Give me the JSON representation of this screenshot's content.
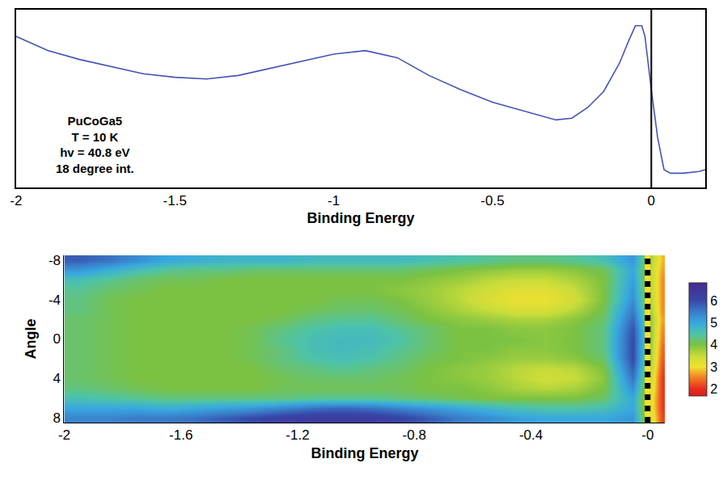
{
  "chart_data": [
    {
      "type": "line",
      "x": [
        -2.0,
        -1.9,
        -1.8,
        -1.7,
        -1.6,
        -1.5,
        -1.4,
        -1.3,
        -1.2,
        -1.1,
        -1.0,
        -0.9,
        -0.8,
        -0.7,
        -0.6,
        -0.5,
        -0.4,
        -0.3,
        -0.25,
        -0.2,
        -0.15,
        -0.1,
        -0.07,
        -0.05,
        -0.03,
        -0.02,
        0.0,
        0.02,
        0.04,
        0.06,
        0.1,
        0.15,
        0.17
      ],
      "values": [
        0.85,
        0.77,
        0.72,
        0.68,
        0.64,
        0.62,
        0.61,
        0.63,
        0.67,
        0.71,
        0.75,
        0.77,
        0.73,
        0.63,
        0.55,
        0.48,
        0.43,
        0.38,
        0.39,
        0.45,
        0.54,
        0.7,
        0.83,
        0.91,
        0.91,
        0.85,
        0.55,
        0.28,
        0.1,
        0.08,
        0.08,
        0.09,
        0.1
      ],
      "color": "#4455b5",
      "xlim": [
        -2,
        0.17
      ],
      "ylim": [
        0,
        1
      ],
      "xticks": [
        -2,
        -1.5,
        -1,
        -0.5,
        0
      ],
      "tick_labels": "x",
      "x_label": "Binding Energy",
      "annotation_lines": [
        "PuCoGa5",
        "T = 10 K",
        "hv = 40.8 eV",
        "18 degree int."
      ],
      "vline": 0
    },
    {
      "type": "heatmap",
      "x": [
        -1.95,
        -1.85,
        -1.75,
        -1.65,
        -1.55,
        -1.45,
        -1.35,
        -1.25,
        -1.15,
        -1.05,
        -0.95,
        -0.85,
        -0.75,
        -0.65,
        -0.55,
        -0.45,
        -0.35,
        -0.25,
        -0.15,
        -0.05,
        0.05
      ],
      "y": [
        -8,
        -7,
        -6,
        -5,
        -4,
        -3,
        -2,
        -1,
        0,
        1,
        2,
        3,
        4,
        5,
        6,
        7,
        8
      ],
      "z": [
        [
          5.8,
          5.6,
          5.3,
          5.0,
          4.9,
          4.8,
          4.8,
          4.8,
          4.7,
          4.7,
          4.7,
          4.7,
          4.6,
          4.5,
          4.4,
          4.3,
          4.3,
          4.4,
          4.6,
          5.2,
          2.8
        ],
        [
          5.2,
          4.9,
          4.6,
          4.4,
          4.3,
          4.3,
          4.2,
          4.2,
          4.2,
          4.2,
          4.2,
          4.2,
          4.1,
          4.0,
          3.9,
          3.8,
          3.8,
          3.9,
          4.1,
          5.0,
          2.7
        ],
        [
          4.6,
          4.4,
          4.2,
          4.1,
          4.1,
          4.0,
          4.0,
          4.0,
          4.0,
          4.0,
          4.0,
          4.0,
          3.9,
          3.8,
          3.6,
          3.5,
          3.5,
          3.7,
          4.0,
          5.1,
          2.6
        ],
        [
          4.4,
          4.2,
          4.1,
          4.0,
          4.0,
          4.0,
          4.0,
          4.0,
          4.0,
          4.0,
          4.0,
          3.9,
          3.8,
          3.6,
          3.4,
          3.2,
          3.2,
          3.5,
          4.0,
          5.2,
          2.6
        ],
        [
          4.3,
          4.1,
          4.0,
          4.0,
          4.0,
          4.0,
          4.0,
          4.0,
          4.0,
          4.1,
          4.1,
          4.0,
          3.8,
          3.6,
          3.3,
          3.1,
          3.1,
          3.4,
          4.0,
          5.3,
          2.6
        ],
        [
          4.3,
          4.1,
          4.0,
          4.0,
          4.0,
          4.0,
          4.0,
          4.0,
          4.1,
          4.2,
          4.2,
          4.1,
          3.9,
          3.7,
          3.5,
          3.3,
          3.3,
          3.6,
          4.1,
          5.5,
          2.6
        ],
        [
          4.2,
          4.1,
          4.0,
          4.0,
          4.0,
          4.0,
          4.0,
          4.1,
          4.3,
          4.4,
          4.4,
          4.2,
          4.0,
          3.9,
          3.8,
          3.7,
          3.7,
          3.9,
          4.2,
          5.7,
          2.7
        ],
        [
          4.2,
          4.1,
          4.0,
          4.0,
          4.0,
          4.0,
          4.1,
          4.3,
          4.5,
          4.6,
          4.6,
          4.4,
          4.2,
          4.0,
          4.0,
          3.9,
          3.9,
          4.0,
          4.3,
          5.9,
          2.6
        ],
        [
          4.2,
          4.1,
          4.0,
          4.0,
          4.0,
          4.0,
          4.1,
          4.4,
          4.6,
          4.7,
          4.7,
          4.5,
          4.2,
          4.0,
          4.0,
          4.0,
          3.9,
          4.0,
          4.3,
          6.0,
          2.5
        ],
        [
          4.2,
          4.1,
          4.0,
          4.0,
          4.0,
          4.0,
          4.1,
          4.3,
          4.6,
          4.7,
          4.6,
          4.4,
          4.2,
          4.0,
          4.0,
          3.9,
          3.9,
          4.0,
          4.3,
          6.0,
          2.4
        ],
        [
          4.2,
          4.1,
          4.0,
          4.0,
          4.0,
          4.0,
          4.1,
          4.3,
          4.5,
          4.6,
          4.5,
          4.3,
          4.1,
          4.0,
          3.9,
          3.8,
          3.8,
          3.9,
          4.2,
          6.0,
          2.3
        ],
        [
          4.2,
          4.1,
          4.0,
          4.0,
          4.0,
          4.0,
          4.0,
          4.2,
          4.3,
          4.4,
          4.3,
          4.2,
          4.0,
          3.9,
          3.8,
          3.6,
          3.5,
          3.6,
          4.0,
          5.8,
          2.2
        ],
        [
          4.2,
          4.1,
          4.0,
          4.0,
          4.0,
          4.0,
          4.0,
          4.1,
          4.2,
          4.2,
          4.2,
          4.1,
          4.0,
          3.9,
          3.8,
          3.6,
          3.4,
          3.5,
          3.9,
          5.6,
          2.1
        ],
        [
          4.3,
          4.2,
          4.1,
          4.0,
          4.0,
          4.0,
          4.0,
          4.1,
          4.1,
          4.1,
          4.1,
          4.1,
          4.0,
          4.0,
          3.9,
          3.7,
          3.6,
          3.7,
          4.0,
          5.3,
          2.1
        ],
        [
          4.6,
          4.5,
          4.4,
          4.3,
          4.3,
          4.3,
          4.3,
          4.3,
          4.4,
          4.4,
          4.4,
          4.3,
          4.2,
          4.1,
          4.0,
          4.0,
          4.0,
          4.0,
          4.2,
          5.0,
          2.1
        ],
        [
          5.0,
          5.0,
          5.0,
          4.9,
          5.0,
          5.1,
          5.2,
          5.4,
          5.6,
          5.7,
          5.6,
          5.4,
          5.2,
          5.0,
          4.8,
          4.6,
          4.5,
          4.5,
          4.6,
          5.0,
          2.1
        ],
        [
          5.4,
          5.4,
          5.5,
          5.5,
          5.6,
          5.8,
          6.0,
          6.2,
          6.3,
          6.3,
          6.3,
          6.1,
          5.8,
          5.5,
          5.3,
          5.1,
          5.0,
          5.0,
          5.0,
          5.2,
          2.2
        ]
      ],
      "xlim": [
        -2,
        0.06
      ],
      "ylim": [
        8.5,
        -8.5
      ],
      "xticks": [
        -2,
        -1.6,
        -1.2,
        -0.8,
        -0.4,
        {
          "value": 0,
          "label": "-0"
        }
      ],
      "yticks": [
        -8,
        -4,
        0,
        4,
        8
      ],
      "x_label": "Binding Energy",
      "y_label": "Angle",
      "colorbar_range": [
        1.7,
        6.8
      ],
      "colorbar_ticks": [
        2,
        3,
        4,
        5,
        6
      ],
      "vline": 0
    }
  ]
}
